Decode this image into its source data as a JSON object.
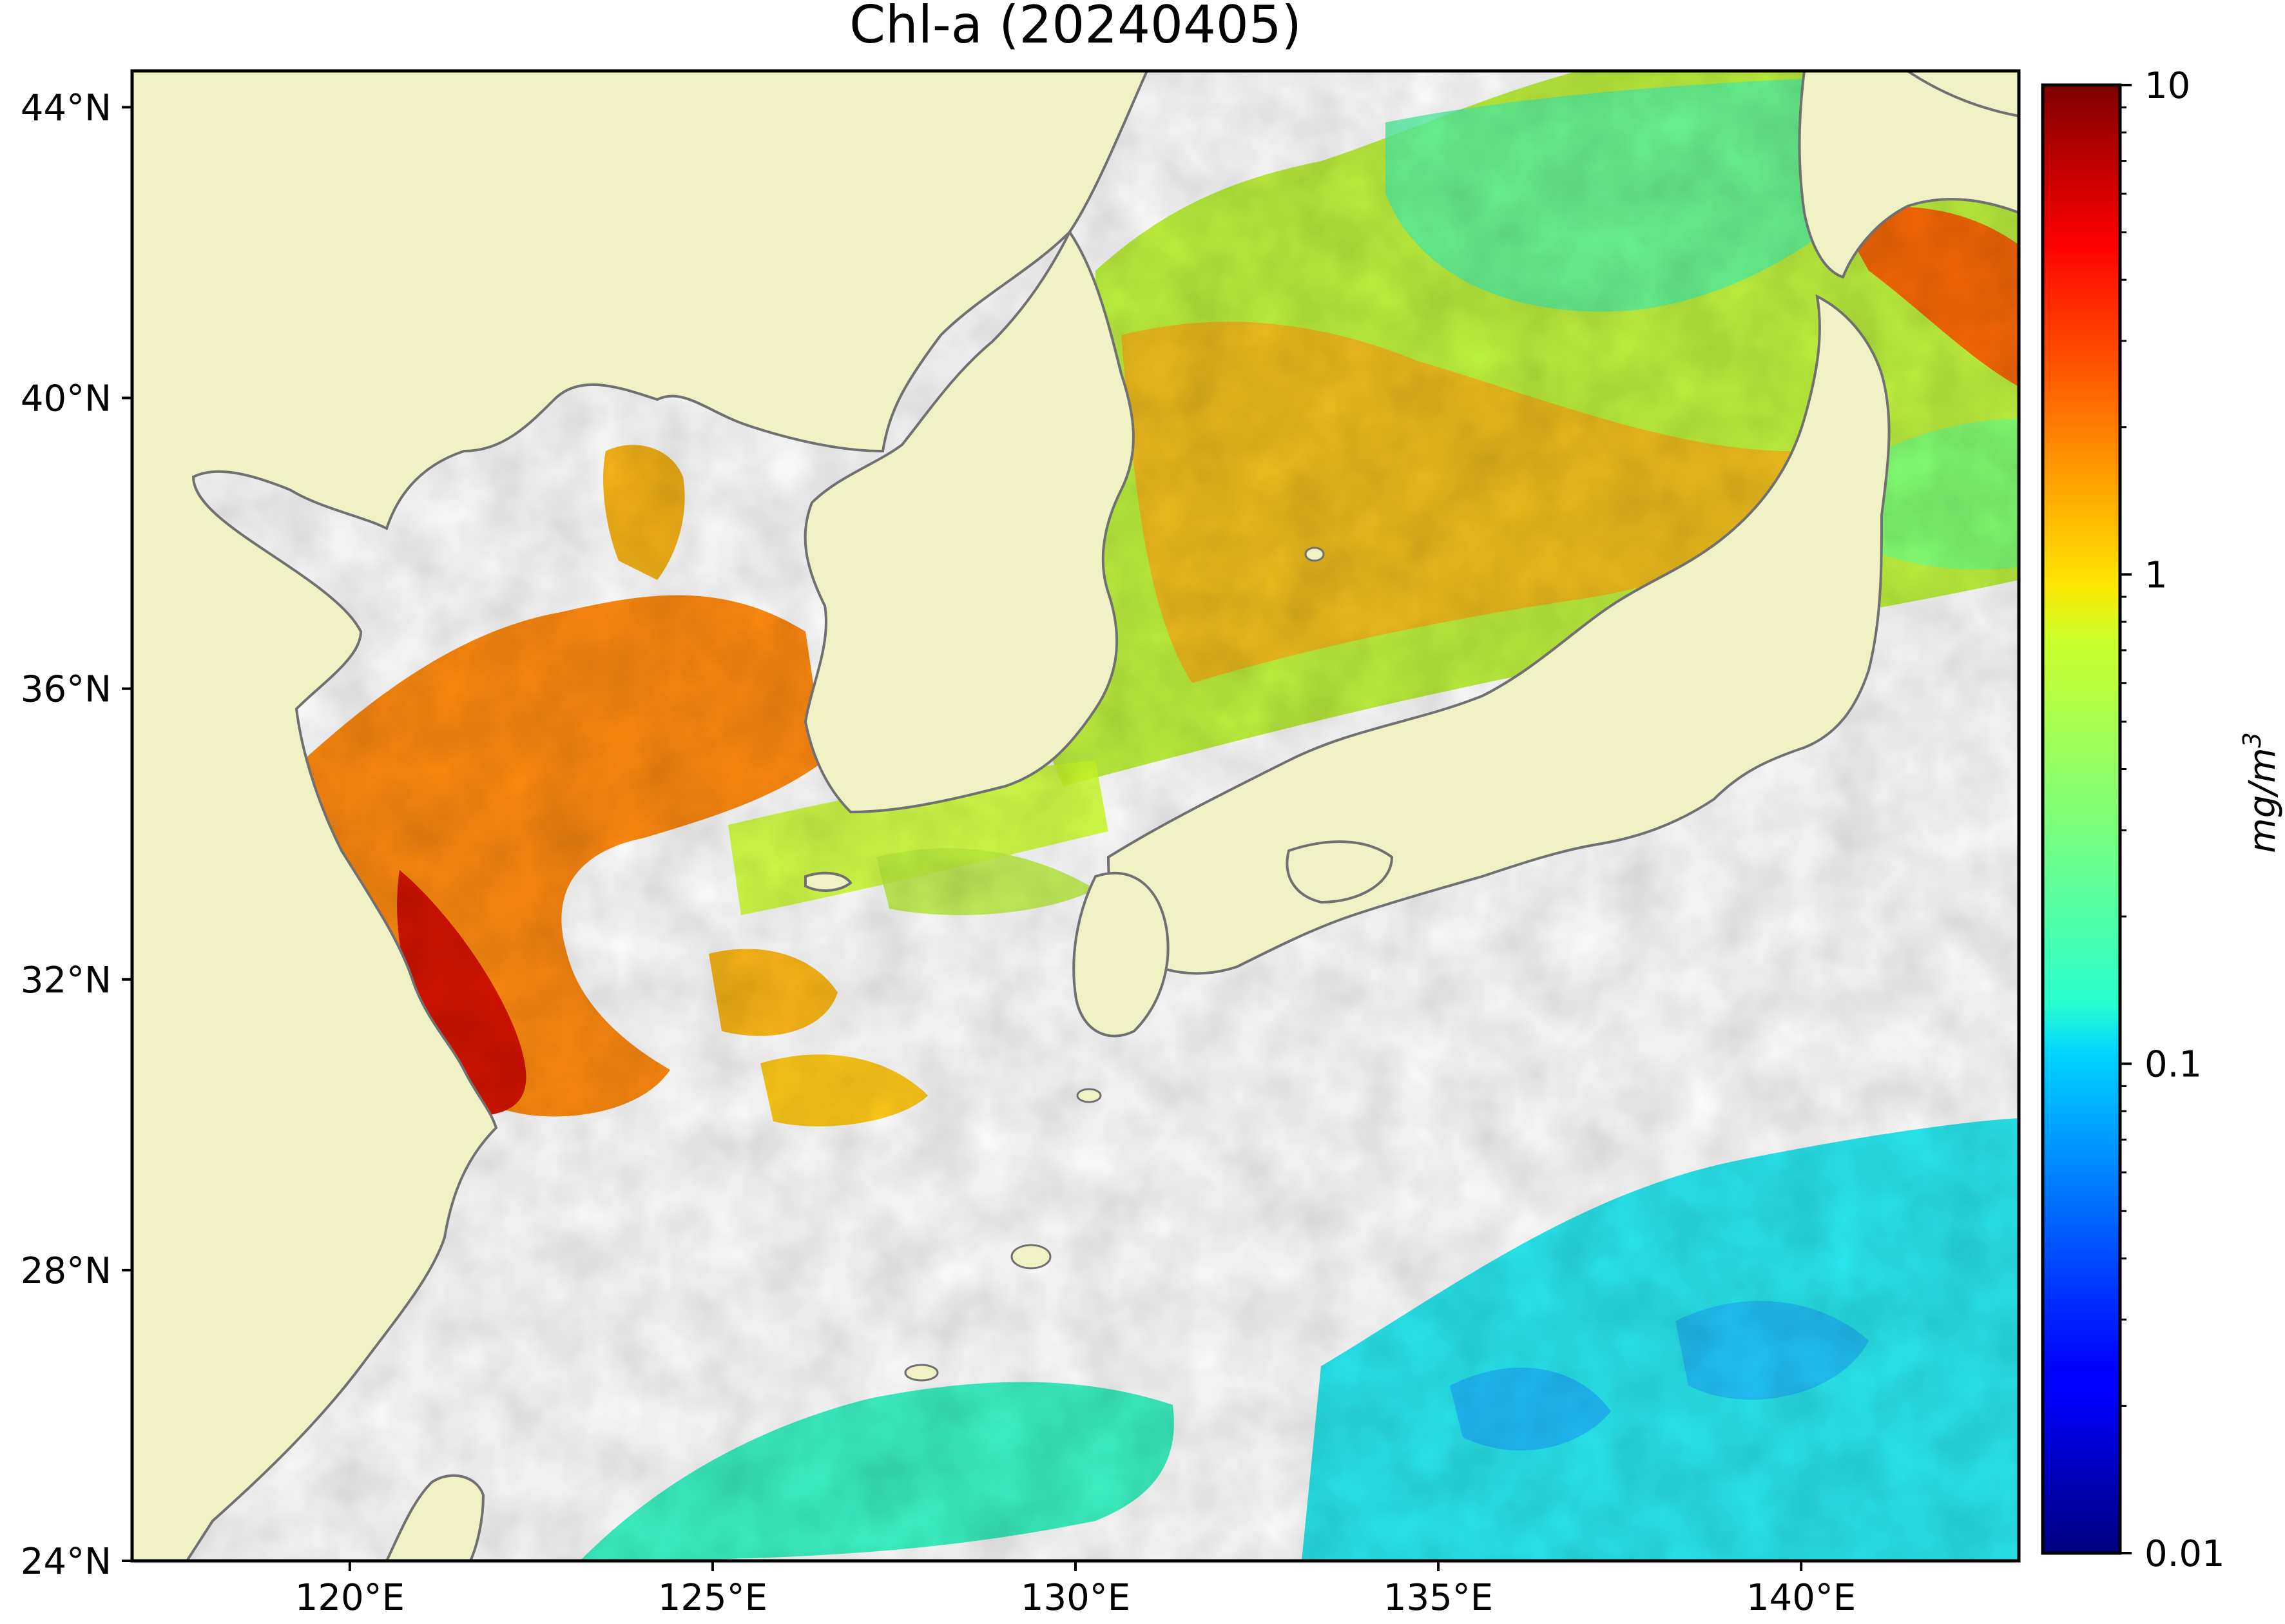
{
  "title": "Chl-a (20240405)",
  "map": {
    "lon_range": [
      117,
      143
    ],
    "lat_range": [
      24,
      44.5
    ],
    "land_color": "#f0f2c6",
    "coast_color": "#707070",
    "ocean_nodata_color": "#ffffff",
    "lon_ticks": [
      {
        "value": 120,
        "label": "120°E"
      },
      {
        "value": 125,
        "label": "125°E"
      },
      {
        "value": 130,
        "label": "130°E"
      },
      {
        "value": 135,
        "label": "135°E"
      },
      {
        "value": 140,
        "label": "140°E"
      }
    ],
    "lat_ticks": [
      {
        "value": 24,
        "label": "24°N"
      },
      {
        "value": 28,
        "label": "28°N"
      },
      {
        "value": 32,
        "label": "32°N"
      },
      {
        "value": 36,
        "label": "36°N"
      },
      {
        "value": 40,
        "label": "40°N"
      },
      {
        "value": 44,
        "label": "44°N"
      }
    ]
  },
  "colorbar": {
    "colormap": "jet",
    "scale": "log",
    "min": 0.01,
    "max": 10,
    "unit_base": "mg/m",
    "unit_exp": "3",
    "ticks": [
      {
        "value": 0.01,
        "label": "0.01"
      },
      {
        "value": 0.1,
        "label": "0.1"
      },
      {
        "value": 1,
        "label": "1"
      },
      {
        "value": 10,
        "label": "10"
      }
    ]
  }
}
